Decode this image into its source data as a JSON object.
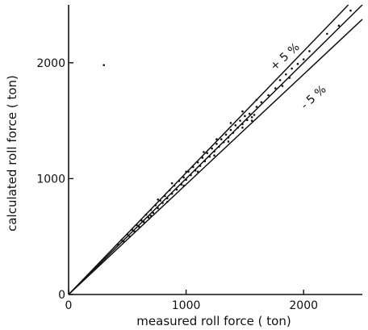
{
  "chart_data": {
    "type": "scatter",
    "title": "",
    "xlabel": "measured roll force ( ton)",
    "ylabel": "calculated roll force ( ton)",
    "xlim": [
      0,
      2500
    ],
    "ylim": [
      0,
      2500
    ],
    "xticks": [
      0,
      1000,
      2000
    ],
    "yticks": [
      0,
      1000,
      2000
    ],
    "x_tick_labels": [
      "0",
      "1000",
      "2000"
    ],
    "y_tick_labels": [
      "0",
      "1000",
      "2000"
    ],
    "grid": false,
    "reference_lines": [
      {
        "label": "",
        "slope": 1.0
      },
      {
        "label": "+ 5 %",
        "slope": 1.05
      },
      {
        "label": "- 5 %",
        "slope": 0.95
      }
    ],
    "series": [
      {
        "points": [
          [
            420,
            430
          ],
          [
            450,
            470
          ],
          [
            470,
            455
          ],
          [
            500,
            520
          ],
          [
            520,
            500
          ],
          [
            540,
            560
          ],
          [
            560,
            545
          ],
          [
            580,
            600
          ],
          [
            600,
            585
          ],
          [
            620,
            640
          ],
          [
            640,
            625
          ],
          [
            660,
            690
          ],
          [
            680,
            665
          ],
          [
            700,
            730
          ],
          [
            720,
            705
          ],
          [
            740,
            770
          ],
          [
            760,
            745
          ],
          [
            780,
            810
          ],
          [
            800,
            790
          ],
          [
            820,
            850
          ],
          [
            840,
            830
          ],
          [
            860,
            900
          ],
          [
            880,
            870
          ],
          [
            900,
            940
          ],
          [
            920,
            905
          ],
          [
            940,
            980
          ],
          [
            960,
            950
          ],
          [
            980,
            1010
          ],
          [
            1000,
            990
          ],
          [
            1020,
            1060
          ],
          [
            1040,
            1030
          ],
          [
            1060,
            1100
          ],
          [
            1080,
            1070
          ],
          [
            1100,
            1140
          ],
          [
            1120,
            1110
          ],
          [
            1140,
            1180
          ],
          [
            1160,
            1150
          ],
          [
            1180,
            1220
          ],
          [
            1200,
            1190
          ],
          [
            1220,
            1260
          ],
          [
            1240,
            1235
          ],
          [
            1260,
            1300
          ],
          [
            1280,
            1275
          ],
          [
            1300,
            1340
          ],
          [
            1320,
            1315
          ],
          [
            1340,
            1380
          ],
          [
            1360,
            1355
          ],
          [
            1380,
            1420
          ],
          [
            1400,
            1395
          ],
          [
            1420,
            1460
          ],
          [
            1440,
            1440
          ],
          [
            1460,
            1500
          ],
          [
            1480,
            1470
          ],
          [
            1500,
            1540
          ],
          [
            1520,
            1505
          ],
          [
            1540,
            1560
          ],
          [
            1560,
            1530
          ],
          [
            1580,
            1550
          ],
          [
            1600,
            1620
          ],
          [
            1640,
            1660
          ],
          [
            1700,
            1720
          ],
          [
            1760,
            1780
          ],
          [
            1800,
            1850
          ],
          [
            1820,
            1800
          ],
          [
            1850,
            1900
          ],
          [
            1880,
            1870
          ],
          [
            1900,
            1950
          ],
          [
            1950,
            1990
          ],
          [
            2000,
            2030
          ],
          [
            2050,
            2100
          ],
          [
            2200,
            2250
          ],
          [
            2300,
            2320
          ],
          [
            2400,
            2450
          ],
          [
            760,
            820
          ],
          [
            880,
            960
          ],
          [
            1000,
            1060
          ],
          [
            1150,
            1230
          ],
          [
            1260,
            1340
          ],
          [
            1380,
            1480
          ],
          [
            1480,
            1580
          ],
          [
            1600,
            1680
          ],
          [
            700,
            680
          ],
          [
            840,
            800
          ],
          [
            980,
            940
          ],
          [
            1100,
            1060
          ],
          [
            1240,
            1200
          ],
          [
            1360,
            1320
          ],
          [
            1480,
            1440
          ],
          [
            1560,
            1500
          ],
          [
            300,
            1980
          ]
        ]
      }
    ]
  }
}
